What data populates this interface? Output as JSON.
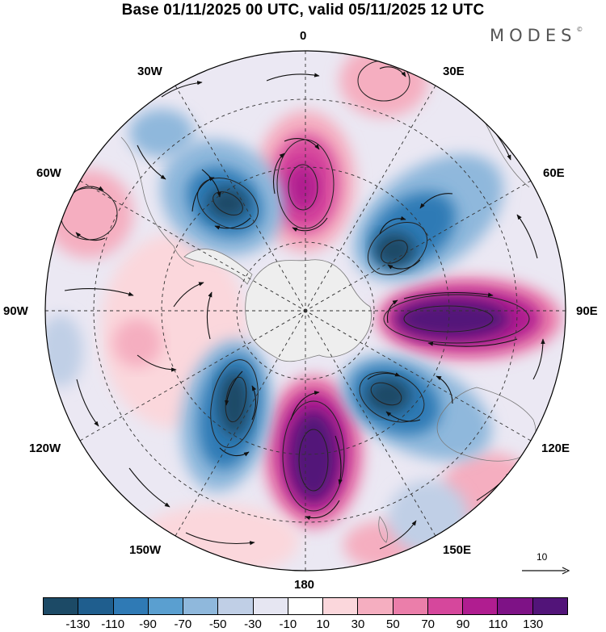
{
  "title": "Base 01/11/2025 00 UTC, valid 05/11/2025 12 UTC",
  "brand": {
    "name": "MODES",
    "mark": "©"
  },
  "longitude_labels": {
    "top": "0",
    "top_right": "30E",
    "right_upper": "60E",
    "right": "90E",
    "right_lower": "120E",
    "bottom_right": "150E",
    "bottom": "180",
    "bottom_left": "150W",
    "left_lower": "120W",
    "left": "90W",
    "left_upper": "60W",
    "top_left": "30W"
  },
  "reference_vector": {
    "label": "10"
  },
  "colorbar": {
    "colors": [
      "#1c4a66",
      "#1f5e8e",
      "#2f7ab5",
      "#5a9fd0",
      "#8fb8dc",
      "#c0cfe6",
      "#e6e6f2",
      "#ffffff",
      "#fbd7dc",
      "#f5aec0",
      "#eb7eaa",
      "#d6479c",
      "#b01d90",
      "#7e1286",
      "#521479"
    ],
    "ticks": [
      "-130",
      "-110",
      "-90",
      "-70",
      "-50",
      "-30",
      "-10",
      "10",
      "30",
      "50",
      "70",
      "90",
      "110",
      "130"
    ]
  },
  "colors": {
    "ocean_neutral": "#ebe8f3",
    "antarctica": "#eeeeee",
    "coast": "#7a7a7a",
    "grid": "#333333",
    "arrow": "#111111"
  }
}
